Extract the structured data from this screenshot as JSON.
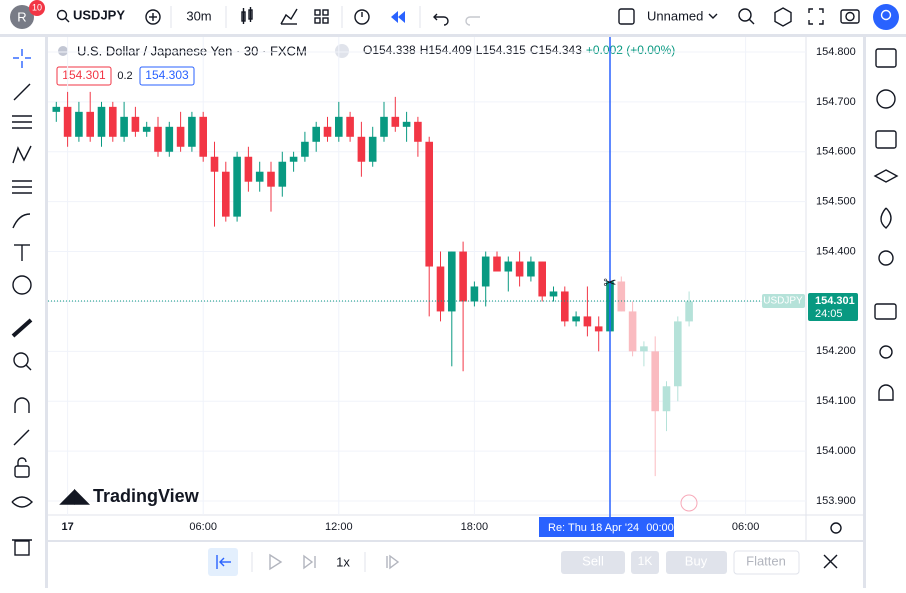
{
  "topbar": {
    "avatar": "R",
    "badge": "10",
    "symbol": "USDJPY",
    "interval": "30m",
    "layout_name": "Unnamed"
  },
  "legend": {
    "title": "U.S. Dollar / Japanese Yen · 30 · FXCM",
    "ohlc": [
      "O154.338",
      "H154.409",
      "L154.315",
      "C154.343",
      "+0.002 (+0.00%)"
    ]
  },
  "order_panel": {
    "sell": "154.301",
    "spread": "0.2",
    "buy": "154.303"
  },
  "price_tag": {
    "symbol": "USDJPY",
    "countdown": "24:05"
  },
  "brand": "TradingView",
  "replay_label": "Re: Thu 18 Apr '24",
  "bottombar": {
    "speed": "1x",
    "sell": "Sell",
    "qty": "1K",
    "buy": "Buy",
    "flatten": "Flatten"
  },
  "chart_data": {
    "type": "candlestick",
    "up_color": "#089981",
    "down_color": "#f23645",
    "future_up_color": "#b5e2d9",
    "future_down_color": "#fabbc0",
    "grid": true,
    "current_price": 154.301,
    "ylim": [
      153.872,
      154.83
    ],
    "yticks": [
      {
        "value": 153.9,
        "label": "153.900"
      },
      {
        "value": 154.0,
        "label": "154.000"
      },
      {
        "value": 154.1,
        "label": "154.100"
      },
      {
        "value": 154.2,
        "label": "154.200"
      },
      {
        "value": 154.3,
        "label": "154.300"
      },
      {
        "value": 154.4,
        "label": "154.400"
      },
      {
        "value": 154.5,
        "label": "154.500"
      },
      {
        "value": 154.6,
        "label": "154.600"
      },
      {
        "value": 154.7,
        "label": "154.700"
      },
      {
        "value": 154.8,
        "label": "154.800"
      }
    ],
    "xticks": [
      {
        "value": 1,
        "label": "17"
      },
      {
        "value": 13,
        "label": "06:00"
      },
      {
        "value": 25,
        "label": "12:00"
      },
      {
        "value": 37,
        "label": "18:00"
      },
      {
        "value": 49,
        "label": "00:00"
      },
      {
        "value": 61,
        "label": "06:00"
      }
    ],
    "candles": [
      [
        154.68,
        154.7,
        154.66,
        154.69
      ],
      [
        154.69,
        154.72,
        154.61,
        154.63
      ],
      [
        154.63,
        154.7,
        154.62,
        154.68
      ],
      [
        154.68,
        154.72,
        154.62,
        154.63
      ],
      [
        154.63,
        154.7,
        154.61,
        154.69
      ],
      [
        154.69,
        154.7,
        154.62,
        154.63
      ],
      [
        154.63,
        154.7,
        154.62,
        154.67
      ],
      [
        154.67,
        154.69,
        154.63,
        154.64
      ],
      [
        154.64,
        154.66,
        154.63,
        154.65
      ],
      [
        154.65,
        154.67,
        154.59,
        154.6
      ],
      [
        154.6,
        154.66,
        154.59,
        154.65
      ],
      [
        154.65,
        154.68,
        154.6,
        154.61
      ],
      [
        154.61,
        154.68,
        154.6,
        154.67
      ],
      [
        154.67,
        154.68,
        154.58,
        154.59
      ],
      [
        154.59,
        154.62,
        154.45,
        154.56
      ],
      [
        154.56,
        154.58,
        154.46,
        154.47
      ],
      [
        154.47,
        154.6,
        154.46,
        154.59
      ],
      [
        154.59,
        154.61,
        154.52,
        154.54
      ],
      [
        154.54,
        154.58,
        154.52,
        154.56
      ],
      [
        154.56,
        154.58,
        154.48,
        154.53
      ],
      [
        154.53,
        154.6,
        154.51,
        154.58
      ],
      [
        154.58,
        154.6,
        154.56,
        154.59
      ],
      [
        154.59,
        154.64,
        154.58,
        154.62
      ],
      [
        154.62,
        154.66,
        154.6,
        154.65
      ],
      [
        154.65,
        154.67,
        154.62,
        154.63
      ],
      [
        154.63,
        154.7,
        154.62,
        154.67
      ],
      [
        154.67,
        154.68,
        154.62,
        154.63
      ],
      [
        154.63,
        154.66,
        154.55,
        154.58
      ],
      [
        154.58,
        154.65,
        154.57,
        154.63
      ],
      [
        154.63,
        154.7,
        154.62,
        154.67
      ],
      [
        154.67,
        154.71,
        154.64,
        154.65
      ],
      [
        154.65,
        154.68,
        154.62,
        154.66
      ],
      [
        154.66,
        154.67,
        154.59,
        154.62
      ],
      [
        154.62,
        154.63,
        154.27,
        154.37
      ],
      [
        154.37,
        154.4,
        154.26,
        154.28
      ],
      [
        154.28,
        154.4,
        154.17,
        154.4
      ],
      [
        154.4,
        154.42,
        154.16,
        154.3
      ],
      [
        154.3,
        154.34,
        154.29,
        154.33
      ],
      [
        154.33,
        154.4,
        154.29,
        154.39
      ],
      [
        154.39,
        154.4,
        154.36,
        154.36
      ],
      [
        154.36,
        154.39,
        154.32,
        154.38
      ],
      [
        154.38,
        154.4,
        154.33,
        154.35
      ],
      [
        154.35,
        154.39,
        154.34,
        154.38
      ],
      [
        154.38,
        154.38,
        154.3,
        154.31
      ],
      [
        154.31,
        154.33,
        154.3,
        154.32
      ],
      [
        154.32,
        154.33,
        154.25,
        154.26
      ],
      [
        154.26,
        154.28,
        154.25,
        154.27
      ],
      [
        154.27,
        154.33,
        154.23,
        154.25
      ],
      [
        154.25,
        154.27,
        154.2,
        154.24
      ],
      [
        154.24,
        154.35,
        154.23,
        154.34
      ]
    ],
    "future_candles": [
      [
        154.34,
        154.35,
        154.28,
        154.28
      ],
      [
        154.28,
        154.3,
        154.19,
        154.2
      ],
      [
        154.2,
        154.22,
        154.17,
        154.21
      ],
      [
        154.2,
        154.23,
        153.95,
        154.08
      ],
      [
        154.08,
        154.14,
        154.04,
        154.13
      ],
      [
        154.13,
        154.27,
        154.1,
        154.26
      ],
      [
        154.26,
        154.32,
        154.25,
        154.3
      ]
    ]
  }
}
